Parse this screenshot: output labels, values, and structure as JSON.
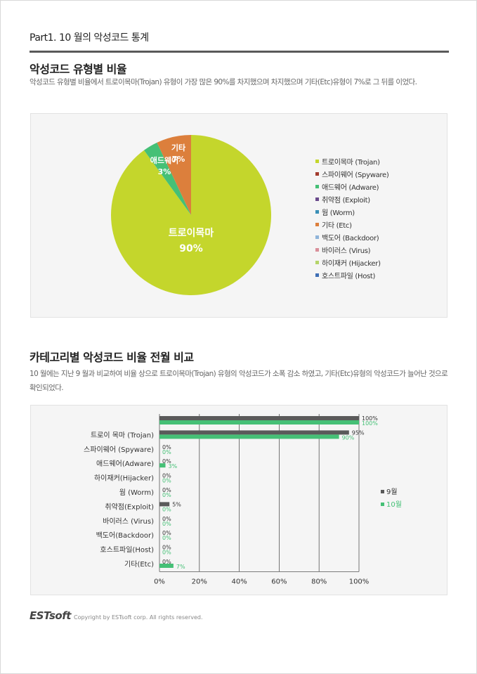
{
  "header": {
    "part_title": "Part1. 10 월의 악성코드 통계"
  },
  "section1": {
    "title": "악성코드 유형별 비율",
    "description": "악성코드 유형별 비율에서 트로이목마(Trojan) 유형이 가장 많은 90%를 차지했으며 차지했으며 기타(Etc)유형이 7%로 그 뒤를 이었다."
  },
  "section2": {
    "title": "카테고리별 악성코드 비율 전월 비교",
    "description": "10 월에는 지난 9 월과 비교하여 비율 상으로 트로이목마(Trojan) 유형의 악성코드가 소폭 감소 하였고, 기타(Etc)유형의 악성코드가 늘어난 것으로 확인되었다."
  },
  "footer": {
    "logo": "ESTsoft",
    "copyright": "Copyright by ESTsoft corp. All rights reserved."
  },
  "chart_data": [
    {
      "type": "pie",
      "slices": [
        {
          "label": "트로이목마",
          "value_text": "90%",
          "value": 90,
          "color": "#c4d62c"
        },
        {
          "label": "애드웨어",
          "value_text": "3%",
          "value": 3,
          "color": "#45c076"
        },
        {
          "label": "기타",
          "value_text": "7%",
          "value": 7,
          "color": "#dc7f3c"
        }
      ],
      "legend": [
        {
          "label": "트로이목마 (Trojan)",
          "color": "#c4d62c"
        },
        {
          "label": "스파이웨어 (Spyware)",
          "color": "#a23b2e"
        },
        {
          "label": "애드웨어 (Adware)",
          "color": "#45c076"
        },
        {
          "label": "취약점 (Exploit)",
          "color": "#6a4a8c"
        },
        {
          "label": "웜 (Worm)",
          "color": "#3a8fb7"
        },
        {
          "label": "기타 (Etc)",
          "color": "#dc7f3c"
        },
        {
          "label": "백도어 (Backdoor)",
          "color": "#8fb4d9"
        },
        {
          "label": "바이러스 (Virus)",
          "color": "#d98f9a"
        },
        {
          "label": "하이재커 (Hijacker)",
          "color": "#b5d46a"
        },
        {
          "label": "호스트파일 (Host)",
          "color": "#3f6fb5"
        }
      ],
      "legend_position": "right"
    },
    {
      "type": "bar",
      "orientation": "horizontal",
      "categories": [
        "",
        "트로이 목마 (Trojan)",
        "스파이웨어 (Spyware)",
        "애드웨어(Adware)",
        "하이재커(Hijacker)",
        "웜 (Worm)",
        "취약점(Exploit)",
        "바이러스 (Virus)",
        "백도어(Backdoor)",
        "호스트파일(Host)",
        "기타(Etc)"
      ],
      "series": [
        {
          "name": "9월",
          "color": "#5a5a5a",
          "values": [
            100,
            95,
            0,
            0,
            0,
            0,
            5,
            0,
            0,
            0,
            0
          ],
          "labels": [
            "100%",
            "95%",
            "0%",
            "0%",
            "0%",
            "0%",
            "5%",
            "0%",
            "0%",
            "0%",
            "0%"
          ]
        },
        {
          "name": "10월",
          "color": "#45c076",
          "values": [
            100,
            90,
            0,
            3,
            0,
            0,
            0,
            0,
            0,
            0,
            7
          ],
          "labels": [
            "100%",
            "90%",
            "0%",
            "3%",
            "0%",
            "0%",
            "0%",
            "0%",
            "0%",
            "0%",
            "7%"
          ]
        }
      ],
      "x_ticks": [
        "0%",
        "20%",
        "40%",
        "60%",
        "80%",
        "100%"
      ],
      "xlim": [
        0,
        100
      ],
      "grid": true,
      "legend_position": "right"
    }
  ]
}
